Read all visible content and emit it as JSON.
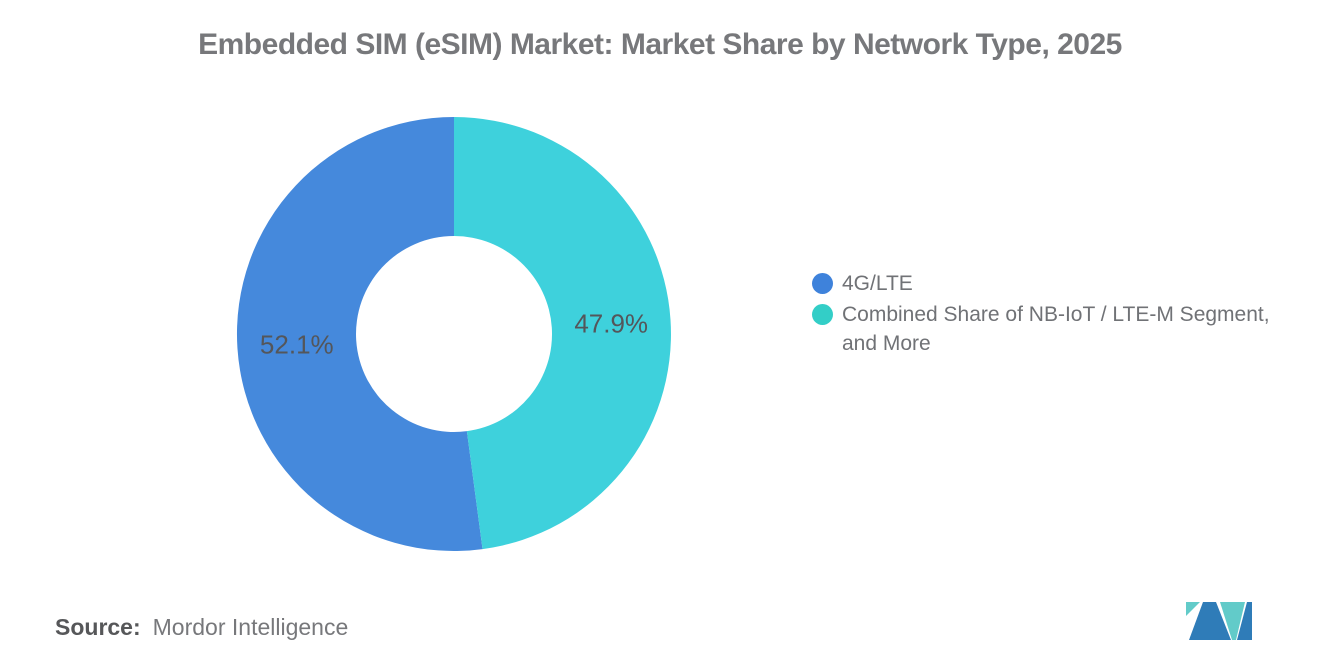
{
  "chart_data": {
    "type": "pie",
    "variant": "donut",
    "title": "Embedded SIM (eSIM) Market: Market Share by Network Type, 2025",
    "series": [
      {
        "name": "4G/LTE",
        "value": 52.1,
        "data_label": "52.1%",
        "color": "#4589DC"
      },
      {
        "name": "Combined Share of NB-IoT / LTE-M Segment, and More",
        "value": 47.9,
        "data_label": "47.9%",
        "color": "#3ED1DC"
      }
    ],
    "start_angle": "top",
    "direction": "counterclockwise",
    "donut_hole_ratio": 0.45,
    "legend_position": "right",
    "data_label_color": "#54565a",
    "background": "#ffffff"
  },
  "legend": {
    "items": [
      {
        "label": "4G/LTE",
        "marker_color": "#3E82DB"
      },
      {
        "label": "Combined Share of NB-IoT / LTE-M Segment, and More",
        "marker_color": "#33CEC7"
      }
    ]
  },
  "footer": {
    "source_label": "Source:",
    "source_value": "Mordor Intelligence"
  },
  "logo": {
    "name": "mordor-intelligence-logo",
    "blue": "#2F7CB8",
    "teal": "#62CBC9"
  }
}
